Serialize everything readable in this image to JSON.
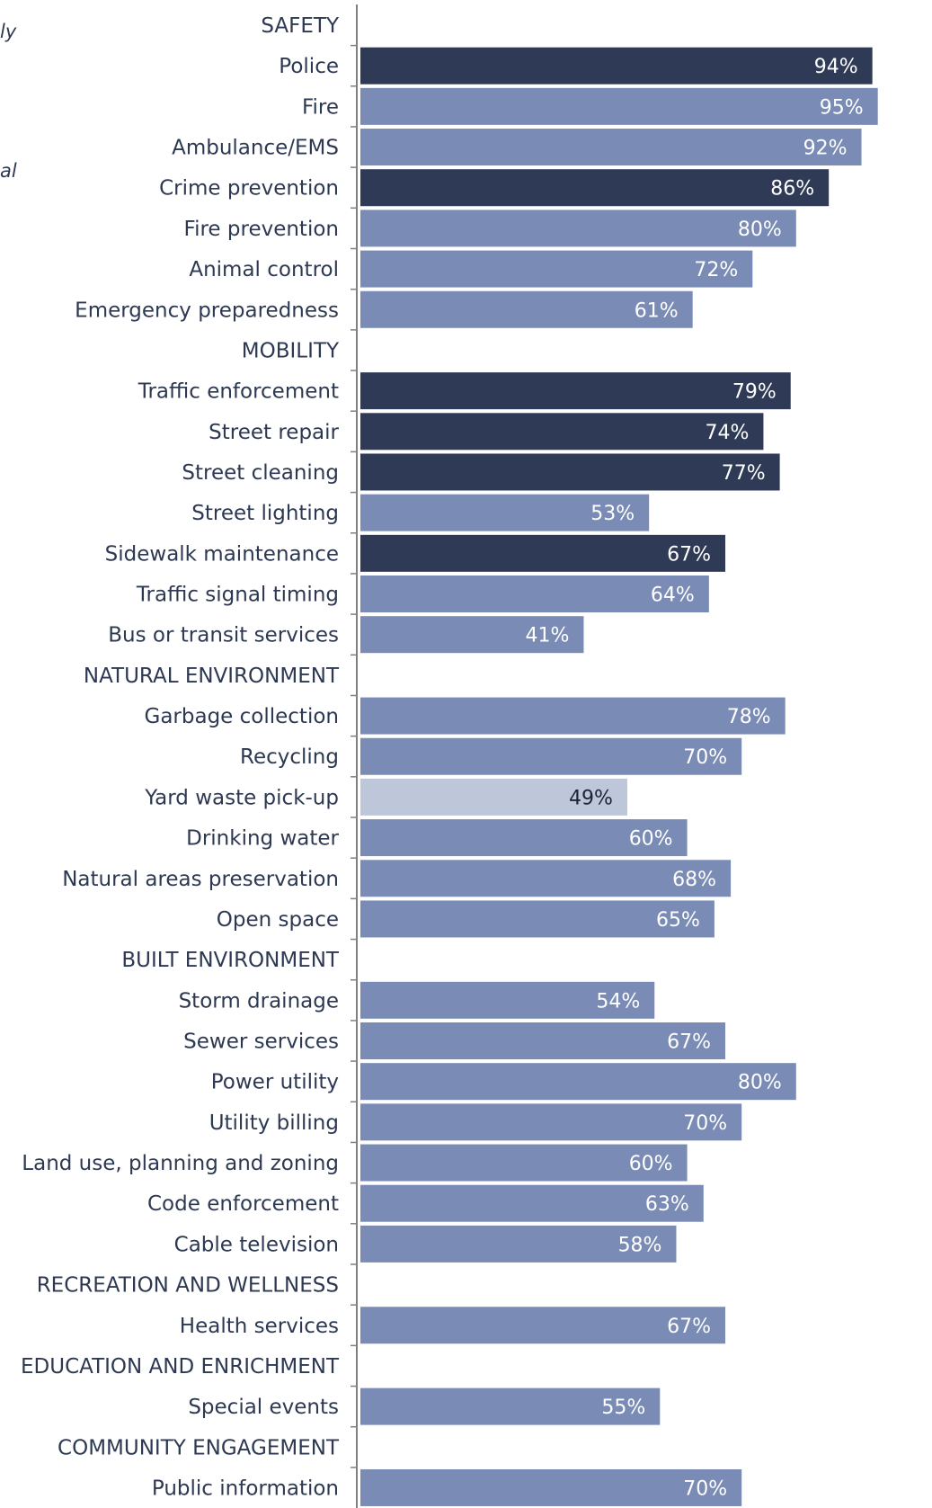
{
  "fragments": [
    "ly",
    "al"
  ],
  "chart_data": {
    "type": "bar",
    "orientation": "horizontal",
    "xlim": [
      0,
      100
    ],
    "value_suffix": "%",
    "colors": {
      "dark": "#2e3a56",
      "medium": "#7a8cb5",
      "light": "#bdc7d9",
      "label_on_bar": "#ffffff",
      "label_dark": "#1e2438",
      "text": "#2d3952",
      "axis": "#7f7f7f"
    },
    "rows": [
      {
        "label": "SAFETY",
        "header": true
      },
      {
        "label": "Police",
        "value": 94,
        "shade": "dark"
      },
      {
        "label": "Fire",
        "value": 95,
        "shade": "medium"
      },
      {
        "label": "Ambulance/EMS",
        "value": 92,
        "shade": "medium"
      },
      {
        "label": "Crime prevention",
        "value": 86,
        "shade": "dark"
      },
      {
        "label": "Fire prevention",
        "value": 80,
        "shade": "medium"
      },
      {
        "label": "Animal control",
        "value": 72,
        "shade": "medium"
      },
      {
        "label": "Emergency preparedness",
        "value": 61,
        "shade": "medium"
      },
      {
        "label": "MOBILITY",
        "header": true
      },
      {
        "label": "Traffic enforcement",
        "value": 79,
        "shade": "dark"
      },
      {
        "label": "Street repair",
        "value": 74,
        "shade": "dark"
      },
      {
        "label": "Street cleaning",
        "value": 77,
        "shade": "dark"
      },
      {
        "label": "Street lighting",
        "value": 53,
        "shade": "medium"
      },
      {
        "label": "Sidewalk maintenance",
        "value": 67,
        "shade": "dark"
      },
      {
        "label": "Traffic signal timing",
        "value": 64,
        "shade": "medium"
      },
      {
        "label": "Bus or transit services",
        "value": 41,
        "shade": "medium"
      },
      {
        "label": "NATURAL ENVIRONMENT",
        "header": true
      },
      {
        "label": "Garbage collection",
        "value": 78,
        "shade": "medium"
      },
      {
        "label": "Recycling",
        "value": 70,
        "shade": "medium"
      },
      {
        "label": "Yard waste pick-up",
        "value": 49,
        "shade": "light"
      },
      {
        "label": "Drinking water",
        "value": 60,
        "shade": "medium"
      },
      {
        "label": "Natural areas preservation",
        "value": 68,
        "shade": "medium"
      },
      {
        "label": "Open space",
        "value": 65,
        "shade": "medium"
      },
      {
        "label": "BUILT ENVIRONMENT",
        "header": true
      },
      {
        "label": "Storm drainage",
        "value": 54,
        "shade": "medium"
      },
      {
        "label": "Sewer services",
        "value": 67,
        "shade": "medium"
      },
      {
        "label": "Power utility",
        "value": 80,
        "shade": "medium"
      },
      {
        "label": "Utility billing",
        "value": 70,
        "shade": "medium"
      },
      {
        "label": "Land use, planning and zoning",
        "value": 60,
        "shade": "medium"
      },
      {
        "label": "Code enforcement",
        "value": 63,
        "shade": "medium"
      },
      {
        "label": "Cable television",
        "value": 58,
        "shade": "medium"
      },
      {
        "label": "RECREATION AND WELLNESS",
        "header": true
      },
      {
        "label": "Health services",
        "value": 67,
        "shade": "medium"
      },
      {
        "label": "EDUCATION AND ENRICHMENT",
        "header": true
      },
      {
        "label": "Special events",
        "value": 55,
        "shade": "medium"
      },
      {
        "label": "COMMUNITY ENGAGEMENT",
        "header": true
      },
      {
        "label": "Public information",
        "value": 70,
        "shade": "medium"
      }
    ]
  }
}
